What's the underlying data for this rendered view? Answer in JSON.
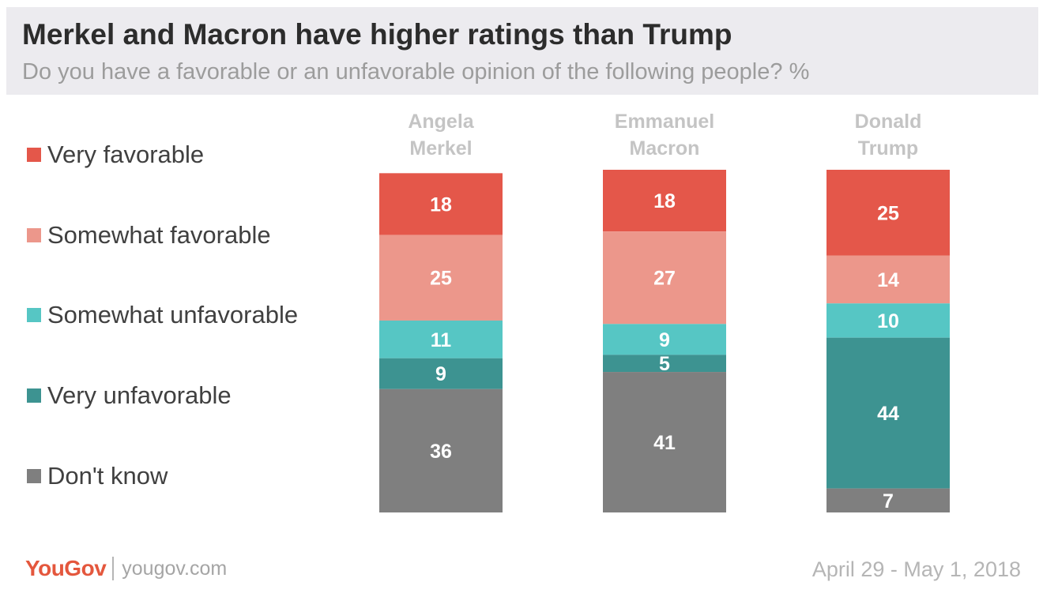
{
  "header": {
    "title": "Merkel and Macron have higher ratings than Trump",
    "subtitle": "Do you have a favorable or an unfavorable opinion of the following people? %"
  },
  "legend": [
    {
      "label": "Very favorable",
      "color": "#e4574a"
    },
    {
      "label": "Somewhat favorable",
      "color": "#ec978b"
    },
    {
      "label": "Somewhat unfavorable",
      "color": "#56c6c4"
    },
    {
      "label": "Very unfavorable",
      "color": "#3d9391"
    },
    {
      "label": "Don't know",
      "color": "#7f7f7f"
    }
  ],
  "chart_data": {
    "type": "bar",
    "stacked": true,
    "categories": [
      [
        "Angela",
        "Merkel"
      ],
      [
        "Emmanuel",
        "Macron"
      ],
      [
        "Donald",
        "Trump"
      ]
    ],
    "series": [
      {
        "name": "Very favorable",
        "color": "#e4574a",
        "values": [
          18,
          18,
          25
        ]
      },
      {
        "name": "Somewhat favorable",
        "color": "#ec978b",
        "values": [
          25,
          27,
          14
        ]
      },
      {
        "name": "Somewhat unfavorable",
        "color": "#56c6c4",
        "values": [
          11,
          9,
          10
        ]
      },
      {
        "name": "Very unfavorable",
        "color": "#3d9391",
        "values": [
          9,
          5,
          44
        ]
      },
      {
        "name": "Don't know",
        "color": "#7f7f7f",
        "values": [
          36,
          41,
          7
        ]
      }
    ]
  },
  "footer": {
    "logo": "YouGov",
    "url": "yougov.com",
    "date": "April 29 - May 1, 2018"
  }
}
